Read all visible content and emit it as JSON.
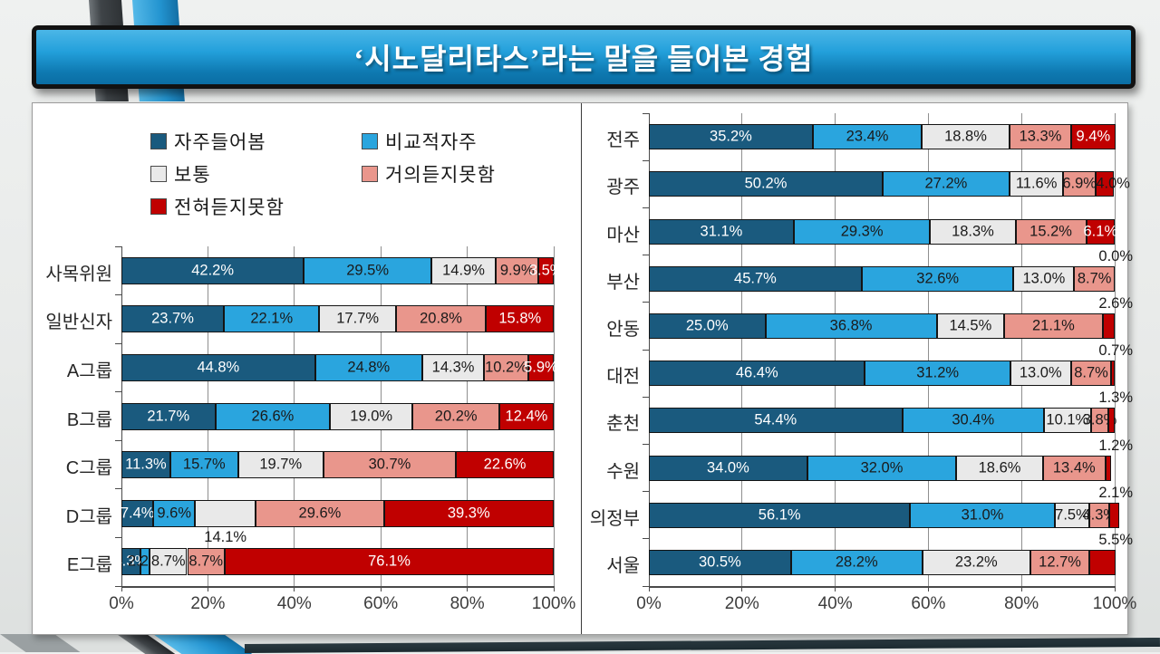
{
  "title": {
    "text": "‘시노달리타스’라는 말을 들어본 경험"
  },
  "colors": {
    "series": [
      "#1A5A7E",
      "#2AA5DE",
      "#E9E9E9",
      "#E9968C",
      "#C00000"
    ],
    "series_label_colors": [
      "#FFFFFF",
      "#1A1A1A",
      "#1A1A1A",
      "#1A1A1A",
      "#FFFFFF"
    ],
    "outside_label_color": "#1A1A1A",
    "accent_blue": "#2394D0",
    "banner_border": "#121212"
  },
  "legend": {
    "items": [
      {
        "label": "자주들어봄",
        "color": "#1A5A7E"
      },
      {
        "label": "비교적자주",
        "color": "#2AA5DE"
      },
      {
        "label": "보통",
        "color": "#E9E9E9"
      },
      {
        "label": "거의듣지못함",
        "color": "#E9968C"
      },
      {
        "label": "전혀듣지못함",
        "color": "#C00000"
      }
    ]
  },
  "chart_data": [
    {
      "type": "bar",
      "orientation": "horizontal-stacked",
      "series_names": [
        "자주들어봄",
        "비교적자주",
        "보통",
        "거의듣지못함",
        "전혀듣지못함"
      ],
      "x_axis": {
        "min": 0,
        "max": 100,
        "ticks": [
          "0%",
          "20%",
          "40%",
          "60%",
          "80%",
          "100%"
        ],
        "grid": true
      },
      "legend_position": "top-left",
      "rows": [
        {
          "category": "사목위원",
          "values": [
            42.2,
            29.5,
            14.9,
            9.9,
            3.5
          ],
          "labels": [
            "42.2%",
            "29.5%",
            "14.9%",
            "9.9%",
            "3.5%"
          ],
          "placements": [
            "in",
            "in",
            "in",
            "in",
            "in"
          ]
        },
        {
          "category": "일반신자",
          "values": [
            23.7,
            22.1,
            17.7,
            20.8,
            15.8
          ],
          "labels": [
            "23.7%",
            "22.1%",
            "17.7%",
            "20.8%",
            "15.8%"
          ],
          "placements": [
            "in",
            "in",
            "in",
            "in",
            "in"
          ]
        },
        {
          "category": "A그룹",
          "values": [
            44.8,
            24.8,
            14.3,
            10.2,
            5.9
          ],
          "labels": [
            "44.8%",
            "24.8%",
            "14.3%",
            "10.2%",
            "5.9%"
          ],
          "placements": [
            "in",
            "in",
            "in",
            "in",
            "in"
          ]
        },
        {
          "category": "B그룹",
          "values": [
            21.7,
            26.6,
            19.0,
            20.2,
            12.4
          ],
          "labels": [
            "21.7%",
            "26.6%",
            "19.0%",
            "20.2%",
            "12.4%"
          ],
          "placements": [
            "in",
            "in",
            "in",
            "in",
            "in"
          ]
        },
        {
          "category": "C그룹",
          "values": [
            11.3,
            15.7,
            19.7,
            30.7,
            22.6
          ],
          "labels": [
            "11.3%",
            "15.7%",
            "19.7%",
            "30.7%",
            "22.6%"
          ],
          "placements": [
            "in",
            "in",
            "in",
            "in",
            "in"
          ]
        },
        {
          "category": "D그룹",
          "values": [
            7.4,
            9.6,
            14.1,
            29.6,
            39.3
          ],
          "labels": [
            "7.4%",
            "9.6%",
            "14.1%",
            "29.6%",
            "39.3%"
          ],
          "placements": [
            "in",
            "in",
            "below",
            "in",
            "in"
          ]
        },
        {
          "category": "E그룹",
          "values": [
            4.3,
            2.2,
            8.7,
            8.7,
            76.1
          ],
          "labels": [
            "4.3%",
            "2.2%",
            "8.7%",
            "8.7%",
            "76.1%"
          ],
          "placements": [
            "in",
            "in",
            "in",
            "in",
            "in"
          ]
        }
      ]
    },
    {
      "type": "bar",
      "orientation": "horizontal-stacked",
      "series_names": [
        "자주들어봄",
        "비교적자주",
        "보통",
        "거의듣지못함",
        "전혀듣지못함"
      ],
      "x_axis": {
        "min": 0,
        "max": 100,
        "ticks": [
          "0%",
          "20%",
          "40%",
          "60%",
          "80%",
          "100%"
        ],
        "grid": true
      },
      "legend_position": "none",
      "rows": [
        {
          "category": "전주",
          "values": [
            35.2,
            23.4,
            18.8,
            13.3,
            9.4
          ],
          "labels": [
            "35.2%",
            "23.4%",
            "18.8%",
            "13.3%",
            "9.4%"
          ],
          "placements": [
            "in",
            "in",
            "in",
            "in",
            "in"
          ]
        },
        {
          "category": "광주",
          "values": [
            50.2,
            27.2,
            11.6,
            6.9,
            4.0
          ],
          "labels": [
            "50.2%",
            "27.2%",
            "11.6%",
            "6.9%",
            "4.0%"
          ],
          "placements": [
            "in",
            "in",
            "in",
            "in",
            "edge"
          ]
        },
        {
          "category": "마산",
          "values": [
            31.1,
            29.3,
            18.3,
            15.2,
            6.1
          ],
          "labels": [
            "31.1%",
            "29.3%",
            "18.3%",
            "15.2%",
            "6.1%"
          ],
          "placements": [
            "in",
            "in",
            "in",
            "in",
            "in"
          ]
        },
        {
          "category": "부산",
          "values": [
            45.7,
            32.6,
            13.0,
            8.7,
            0.0
          ],
          "labels": [
            "45.7%",
            "32.6%",
            "13.0%",
            "8.7%",
            "0.0%"
          ],
          "placements": [
            "in",
            "in",
            "in",
            "in",
            "callout"
          ]
        },
        {
          "category": "안동",
          "values": [
            25.0,
            36.8,
            14.5,
            21.1,
            2.6
          ],
          "labels": [
            "25.0%",
            "36.8%",
            "14.5%",
            "21.1%",
            "2.6%"
          ],
          "placements": [
            "in",
            "in",
            "in",
            "in",
            "callout"
          ]
        },
        {
          "category": "대전",
          "values": [
            46.4,
            31.2,
            13.0,
            8.7,
            0.7
          ],
          "labels": [
            "46.4%",
            "31.2%",
            "13.0%",
            "8.7%",
            "0.7%"
          ],
          "placements": [
            "in",
            "in",
            "in",
            "in",
            "callout"
          ]
        },
        {
          "category": "춘천",
          "values": [
            54.4,
            30.4,
            10.1,
            3.8,
            1.3
          ],
          "labels": [
            "54.4%",
            "30.4%",
            "10.1%",
            "3.8%",
            "1.3%"
          ],
          "placements": [
            "in",
            "in",
            "in",
            "in",
            "callout"
          ]
        },
        {
          "category": "수원",
          "values": [
            34.0,
            32.0,
            18.6,
            13.4,
            1.2
          ],
          "labels": [
            "34.0%",
            "32.0%",
            "18.6%",
            "13.4%",
            "1.2%"
          ],
          "placements": [
            "in",
            "in",
            "in",
            "in",
            "callout"
          ]
        },
        {
          "category": "의정부",
          "values": [
            56.1,
            31.0,
            7.5,
            4.3,
            2.1
          ],
          "labels": [
            "56.1%",
            "31.0%",
            "7.5%",
            "4.3%",
            "2.1%"
          ],
          "placements": [
            "in",
            "in",
            "in",
            "in",
            "callout"
          ]
        },
        {
          "category": "서울",
          "values": [
            30.5,
            28.2,
            23.2,
            12.7,
            5.5
          ],
          "labels": [
            "30.5%",
            "28.2%",
            "23.2%",
            "12.7%",
            "5.5%"
          ],
          "placements": [
            "in",
            "in",
            "in",
            "in",
            "callout"
          ]
        }
      ]
    }
  ]
}
